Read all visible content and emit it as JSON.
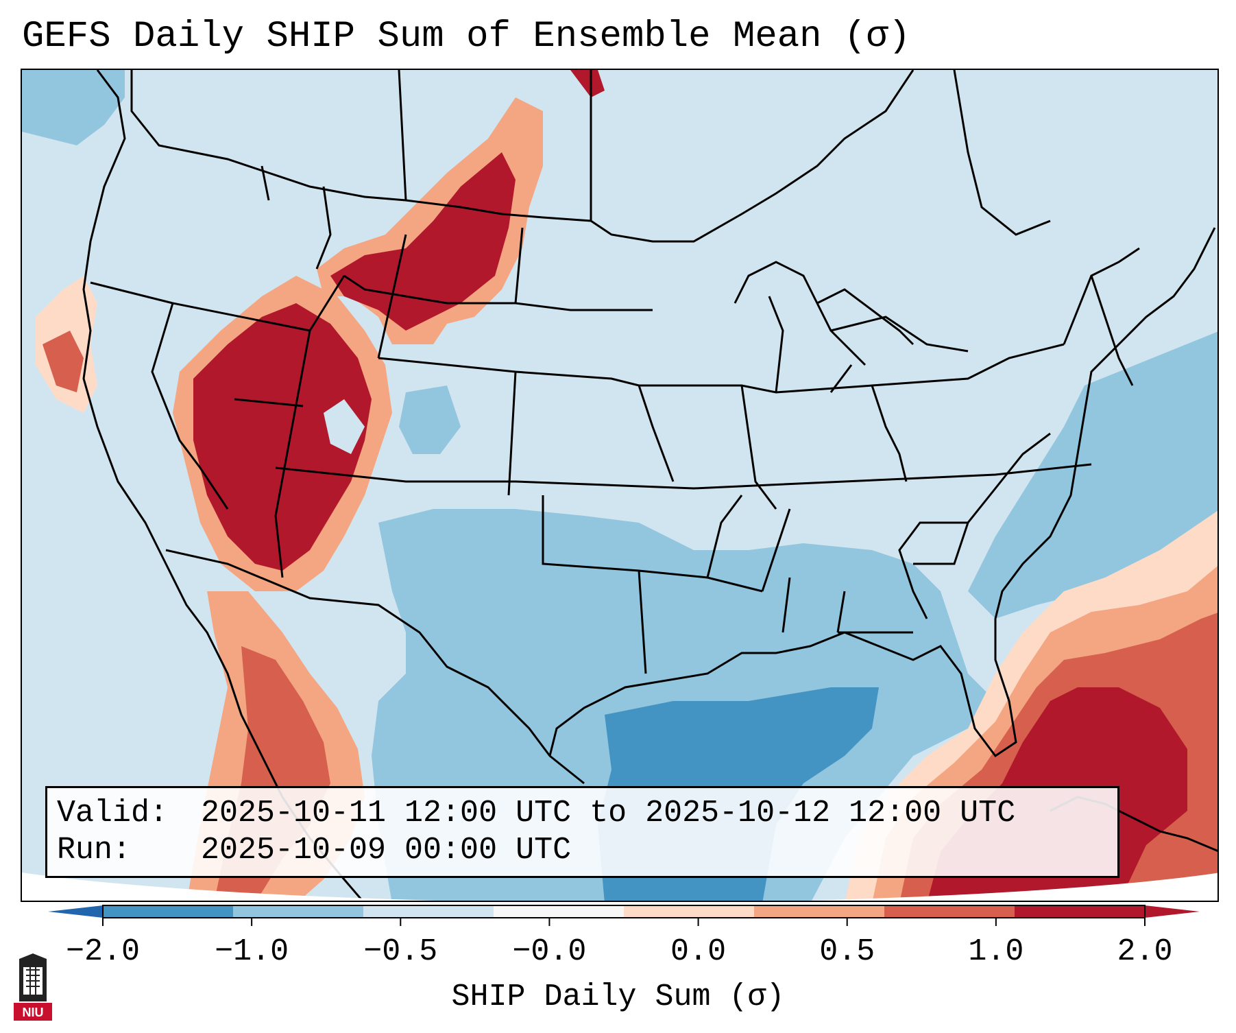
{
  "title": "GEFS Daily SHIP Sum of Ensemble Mean (σ)",
  "info": {
    "valid_label": "Valid:",
    "valid_value": "2025-10-11 12:00 UTC to 2025-10-12 12:00 UTC",
    "run_label": "Run:",
    "run_value": "2025-10-09 00:00 UTC"
  },
  "colorbar": {
    "label": "SHIP Daily Sum (σ)",
    "ticks": [
      "−2.0",
      "−1.0",
      "−0.5",
      "−0.0",
      "0.0",
      "0.5",
      "1.0",
      "2.0"
    ],
    "colors": [
      "#4393c3",
      "#92c5de",
      "#d1e5f0",
      "#f7f7f7",
      "#fddbc7",
      "#f4a582",
      "#d6604d",
      "#b2182b"
    ],
    "extend_low_color": "#2166ac",
    "extend_high_color": "#b2182b"
  },
  "logo": {
    "text": "NIU",
    "icon": "niu-tower-logo-icon",
    "color": "#c8102e"
  },
  "palette": {
    "background": "#d1e5f0",
    "light_blue": "#92c5de",
    "mid_blue": "#4393c3",
    "light_red": "#fddbc7",
    "salmon": "#f4a582",
    "red": "#d6604d",
    "dark_red": "#b2182b"
  }
}
